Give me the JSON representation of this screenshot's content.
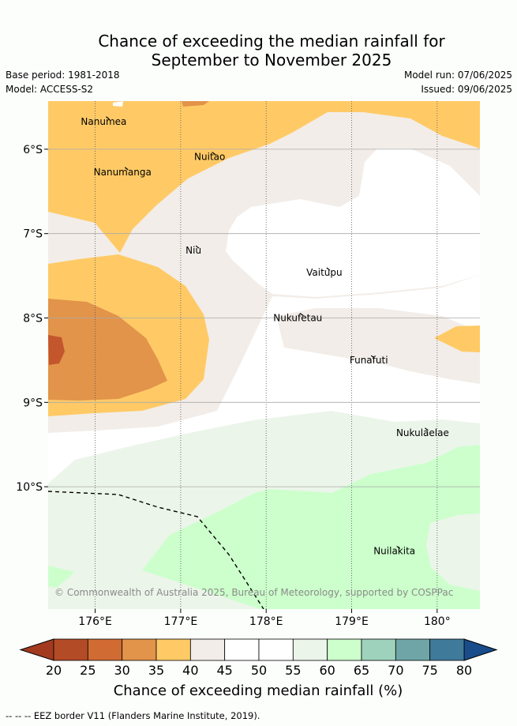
{
  "title": {
    "line1": "Chance of exceeding the median rainfall for",
    "line2": "September to November 2025"
  },
  "meta": {
    "base_period": "Base period: 1981-2018",
    "model": "Model: ACCESS-S2",
    "model_run": "Model run: 07/06/2025",
    "issued": "Issued: 09/06/2025"
  },
  "map": {
    "lon_range": [
      175.45,
      180.5
    ],
    "lat_range": [
      -11.45,
      -5.43
    ],
    "lon_ticks": [
      {
        "value": 176,
        "label": "176°E"
      },
      {
        "value": 177,
        "label": "177°E"
      },
      {
        "value": 178,
        "label": "178°E"
      },
      {
        "value": 179,
        "label": "179°E"
      },
      {
        "value": 180,
        "label": "180°"
      }
    ],
    "lat_ticks": [
      {
        "value": -6,
        "label": "6°S"
      },
      {
        "value": -7,
        "label": "7°S"
      },
      {
        "value": -8,
        "label": "8°S"
      },
      {
        "value": -9,
        "label": "9°S"
      },
      {
        "value": -10,
        "label": "10°S"
      }
    ],
    "places": [
      {
        "name": "Nanumea",
        "lon": 176.1,
        "lat": -5.69
      },
      {
        "name": "Nanumanga",
        "lon": 176.32,
        "lat": -6.29
      },
      {
        "name": "Nuitao",
        "lon": 177.34,
        "lat": -6.11
      },
      {
        "name": "Niu",
        "lon": 177.15,
        "lat": -7.22
      },
      {
        "name": "Vaitupu",
        "lon": 178.68,
        "lat": -7.48
      },
      {
        "name": "Nukufetau",
        "lon": 178.37,
        "lat": -8.02
      },
      {
        "name": "Funafuti",
        "lon": 179.2,
        "lat": -8.52
      },
      {
        "name": "Nukulaelae",
        "lon": 179.83,
        "lat": -9.38
      },
      {
        "name": "Nuilakita",
        "lon": 179.5,
        "lat": -10.78
      }
    ],
    "copyright": "© Commonwealth of Australia 2025, Bureau of Meteorology, supported by COSPPac"
  },
  "colorbar": {
    "label": "Chance of exceeding median rainfall (%)",
    "ticks": [
      20,
      25,
      30,
      35,
      40,
      45,
      50,
      55,
      60,
      65,
      70,
      75,
      80
    ],
    "colors": [
      "#b34b27",
      "#d06b34",
      "#e2944a",
      "#ffca66",
      "#f2ede8",
      "#ffffff",
      "#ffffff",
      "#ecf5ea",
      "#ccffcc",
      "#9fd2bd",
      "#6fa5a7",
      "#3f7a9b"
    ],
    "under_color": "#a33a20",
    "over_color": "#184c8a"
  },
  "footer": "--  --  -- EEZ border V11 (Flanders Marine Institute, 2019)."
}
